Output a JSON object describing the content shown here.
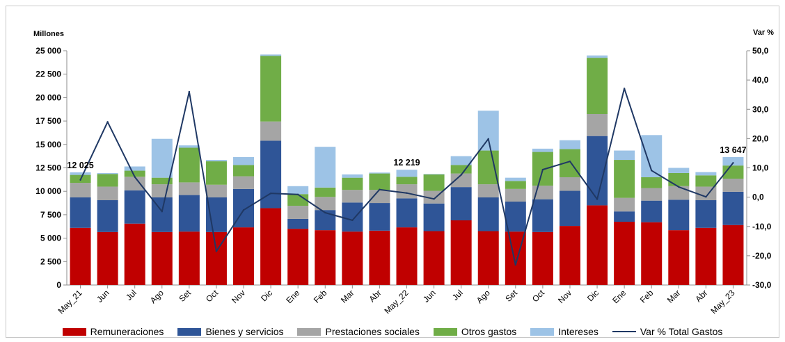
{
  "chart_data": {
    "type": "bar",
    "stacked": true,
    "y_unit_left": "Millones",
    "y_unit_right": "Var %",
    "ylim_left": [
      0,
      25000
    ],
    "ylim_right": [
      -30,
      50
    ],
    "yticks_left": [
      "0",
      "2 500",
      "5 000",
      "7 500",
      "10 000",
      "12 500",
      "15 000",
      "17 500",
      "20 000",
      "22 500",
      "25 000"
    ],
    "yticks_right": [
      "-30,0",
      "-20,0",
      "-10,0",
      "0,0",
      "10,0",
      "20,0",
      "30,0",
      "40,0",
      "50,0"
    ],
    "categories": [
      "May_21",
      "Jun",
      "Jul",
      "Ago",
      "Set",
      "Oct",
      "Nov",
      "Dic",
      "Ene",
      "Feb",
      "Mar",
      "Abr",
      "May_22",
      "Jun",
      "Jul",
      "Ago",
      "Set",
      "Oct",
      "Nov",
      "Dic",
      "Ene",
      "Feb",
      "Mar",
      "Abr",
      "May_23"
    ],
    "series": [
      {
        "name": "Remuneraciones",
        "color": "#C00000",
        "values": [
          6100,
          5650,
          6550,
          5650,
          5700,
          5650,
          6150,
          8200,
          6000,
          5850,
          5700,
          5800,
          6150,
          5750,
          6900,
          5750,
          5700,
          5650,
          6300,
          8500,
          6750,
          6700,
          5850,
          6100,
          6400
        ]
      },
      {
        "name": "Bienes y servicios",
        "color": "#2F5597",
        "values": [
          3250,
          3400,
          3550,
          3700,
          3900,
          3700,
          4100,
          7200,
          1050,
          2150,
          3100,
          2950,
          3100,
          2950,
          3550,
          3600,
          3200,
          3500,
          3750,
          7400,
          1100,
          2300,
          3250,
          2950,
          3550
        ]
      },
      {
        "name": "Prestaciones sociales",
        "color": "#A5A5A5",
        "values": [
          1550,
          1450,
          1450,
          1400,
          1350,
          1350,
          1350,
          2050,
          1400,
          1400,
          1350,
          1400,
          1500,
          1350,
          1450,
          1400,
          1350,
          1450,
          1450,
          2350,
          1450,
          1350,
          1450,
          1450,
          1400
        ]
      },
      {
        "name": "Otros gastos",
        "color": "#70AD47",
        "values": [
          850,
          1350,
          650,
          700,
          3700,
          2500,
          1200,
          7000,
          1250,
          1000,
          1300,
          1750,
          800,
          1750,
          900,
          3600,
          850,
          3600,
          3000,
          6000,
          4050,
          1150,
          1400,
          1200,
          1400
        ]
      },
      {
        "name": "Intereses",
        "color": "#9DC3E6",
        "values": [
          275,
          100,
          450,
          4150,
          250,
          150,
          850,
          150,
          850,
          4350,
          350,
          100,
          750,
          50,
          950,
          4250,
          350,
          350,
          950,
          250,
          1000,
          4500,
          550,
          350,
          900
        ]
      }
    ],
    "line_series": {
      "name": "Var % Total Gastos",
      "color": "#1F3864",
      "axis": "right",
      "values": [
        5.9,
        25.7,
        6.9,
        -4.9,
        36.0,
        -18.5,
        -4.4,
        1.3,
        0.9,
        -5.3,
        -7.9,
        2.6,
        1.4,
        -0.6,
        7.6,
        19.9,
        -23.1,
        9.4,
        12.2,
        -0.7,
        37.1,
        9.1,
        3.5,
        0.1,
        11.7
      ]
    },
    "annotations": [
      {
        "category": "May_21",
        "text": "12 025"
      },
      {
        "category": "May_22",
        "text": "12 219"
      },
      {
        "category": "May_23",
        "text": "13 647"
      }
    ],
    "legend_position": "bottom"
  }
}
